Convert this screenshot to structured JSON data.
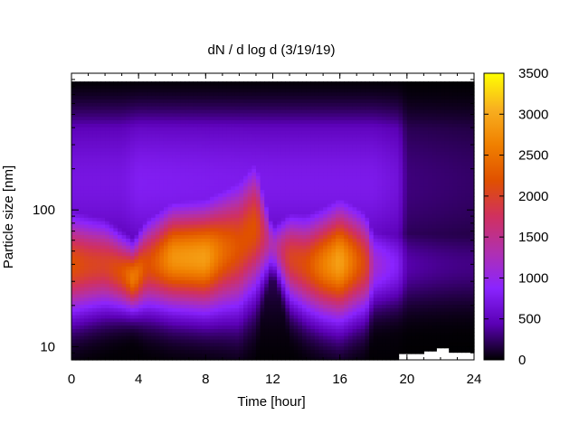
{
  "chart_data": {
    "type": "heatmap",
    "title": "dN / d log d (3/19/19)",
    "xlabel": "Time [hour]",
    "ylabel": "Particle size [nm]",
    "xlim": [
      0,
      24
    ],
    "ylim": [
      8,
      1000
    ],
    "y_scale": "log",
    "x_ticks": [
      0,
      4,
      8,
      12,
      16,
      20,
      24
    ],
    "x_tick_labels": [
      "0",
      "4",
      "8",
      "12",
      "16",
      "20",
      "24"
    ],
    "y_ticks": [
      10,
      100
    ],
    "y_tick_labels": [
      "10",
      "100"
    ],
    "colorbar": {
      "min": 0,
      "max": 3500,
      "ticks": [
        0,
        500,
        1000,
        1500,
        2000,
        2500,
        3000,
        3500
      ],
      "tick_labels": [
        "0",
        "500",
        "1000",
        "1500",
        "2000",
        "2500",
        "3000",
        "3500"
      ],
      "colormap": [
        "#000000",
        "#5a00b4",
        "#8a24ff",
        "#b030b0",
        "#d03060",
        "#e05000",
        "#f08000",
        "#f8b020",
        "#ffff00"
      ]
    },
    "size_range_nm": [
      8,
      870
    ],
    "peak_diameter_nm": [
      [
        0,
        40
      ],
      [
        2,
        40
      ],
      [
        3.7,
        32
      ],
      [
        4.5,
        40
      ],
      [
        6,
        45
      ],
      [
        8,
        45
      ],
      [
        10,
        55
      ],
      [
        11,
        75
      ],
      [
        12,
        55
      ],
      [
        13,
        45
      ],
      [
        14,
        40
      ],
      [
        15,
        40
      ],
      [
        16,
        42
      ],
      [
        17,
        42
      ],
      [
        18,
        40
      ],
      [
        20,
        40
      ],
      [
        24,
        40
      ]
    ],
    "peak_concentration": [
      [
        0,
        2200
      ],
      [
        1,
        2050
      ],
      [
        2,
        2000
      ],
      [
        3,
        2200
      ],
      [
        3.7,
        2600
      ],
      [
        4.5,
        2150
      ],
      [
        5,
        2300
      ],
      [
        6,
        2800
      ],
      [
        7,
        2850
      ],
      [
        8,
        2900
      ],
      [
        9,
        2450
      ],
      [
        10,
        2200
      ],
      [
        11,
        2200
      ],
      [
        12,
        1200
      ],
      [
        12.5,
        1600
      ],
      [
        13,
        2000
      ],
      [
        14,
        2150
      ],
      [
        15,
        2600
      ],
      [
        16,
        2950
      ],
      [
        17,
        2350
      ],
      [
        17.6,
        2000
      ],
      [
        18,
        1150
      ],
      [
        19,
        900
      ],
      [
        19.5,
        800
      ],
      [
        20,
        420
      ],
      [
        21,
        380
      ],
      [
        22,
        350
      ],
      [
        23,
        330
      ],
      [
        24,
        320
      ]
    ],
    "mode_width_log10": [
      [
        0,
        0.25
      ],
      [
        2,
        0.22
      ],
      [
        3.7,
        0.16
      ],
      [
        4.5,
        0.22
      ],
      [
        6,
        0.25
      ],
      [
        8,
        0.26
      ],
      [
        10,
        0.32
      ],
      [
        11,
        0.32
      ],
      [
        12,
        0.12
      ],
      [
        13,
        0.22
      ],
      [
        15,
        0.26
      ],
      [
        16,
        0.28
      ],
      [
        17.5,
        0.25
      ],
      [
        18,
        0.2
      ],
      [
        24,
        0.2
      ]
    ],
    "background_level": [
      [
        0,
        700
      ],
      [
        3,
        700
      ],
      [
        4,
        800
      ],
      [
        12,
        750
      ],
      [
        18,
        750
      ],
      [
        19.5,
        650
      ],
      [
        20,
        300
      ],
      [
        24,
        250
      ]
    ],
    "nodata_steps": [
      [
        19.5,
        21,
        8.9
      ],
      [
        21,
        21.8,
        9.3
      ],
      [
        21.8,
        22.5,
        9.8
      ],
      [
        22.5,
        24,
        9.1
      ]
    ]
  }
}
